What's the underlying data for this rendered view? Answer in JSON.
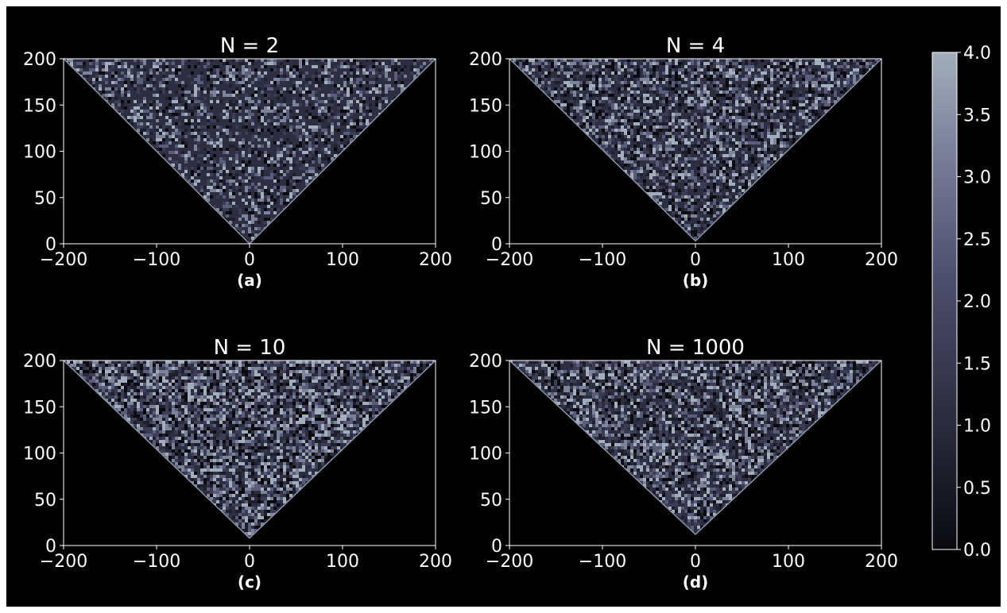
{
  "chart_data": [
    {
      "type": "heatmap",
      "title": "N = 2",
      "caption": "(a)",
      "xlim": [
        -200,
        200
      ],
      "ylim": [
        0,
        200
      ],
      "xticks": [
        "−200",
        "−100",
        "0",
        "100",
        "200"
      ],
      "yticks": [
        "0",
        "50",
        "100",
        "150",
        "200"
      ],
      "xticks_values": [
        -200,
        -100,
        0,
        100,
        200
      ],
      "yticks_values": [
        0,
        50,
        100,
        150,
        200
      ],
      "apex_y": 0,
      "texture_density": 0.5,
      "seed": 2
    },
    {
      "type": "heatmap",
      "title": "N = 4",
      "caption": "(b)",
      "xlim": [
        -200,
        200
      ],
      "ylim": [
        0,
        200
      ],
      "xticks": [
        "−200",
        "−100",
        "0",
        "100",
        "200"
      ],
      "yticks": [
        "0",
        "50",
        "100",
        "150",
        "200"
      ],
      "xticks_values": [
        -200,
        -100,
        0,
        100,
        200
      ],
      "yticks_values": [
        0,
        50,
        100,
        150,
        200
      ],
      "apex_y": 3,
      "texture_density": 0.7,
      "seed": 4
    },
    {
      "type": "heatmap",
      "title": "N = 10",
      "caption": "(c)",
      "xlim": [
        -200,
        200
      ],
      "ylim": [
        0,
        200
      ],
      "xticks": [
        "−200",
        "−100",
        "0",
        "100",
        "200"
      ],
      "yticks": [
        "0",
        "50",
        "100",
        "150",
        "200"
      ],
      "xticks_values": [
        -200,
        -100,
        0,
        100,
        200
      ],
      "yticks_values": [
        0,
        50,
        100,
        150,
        200
      ],
      "apex_y": 8,
      "texture_density": 0.8,
      "seed": 10
    },
    {
      "type": "heatmap",
      "title": "N = 1000",
      "caption": "(d)",
      "xlim": [
        -200,
        200
      ],
      "ylim": [
        0,
        200
      ],
      "xticks": [
        "−200",
        "−100",
        "0",
        "100",
        "200"
      ],
      "yticks": [
        "0",
        "50",
        "100",
        "150",
        "200"
      ],
      "xticks_values": [
        -200,
        -100,
        0,
        100,
        200
      ],
      "yticks_values": [
        0,
        50,
        100,
        150,
        200
      ],
      "apex_y": 12,
      "texture_density": 0.75,
      "seed": 1000
    }
  ],
  "colorbar": {
    "range": [
      0.0,
      4.0
    ],
    "ticks": [
      "0.0",
      "0.5",
      "1.0",
      "1.5",
      "2.0",
      "2.5",
      "3.0",
      "3.5",
      "4.0"
    ],
    "ticks_values": [
      0,
      0.5,
      1,
      1.5,
      2,
      2.5,
      3,
      3.5,
      4
    ],
    "colors": [
      "#0a0a0f",
      "#2a2a3c",
      "#4e4e6e",
      "#7a7f9a",
      "#a2aebb"
    ]
  },
  "colors": {
    "background": "#000000",
    "axis": "#ffffff",
    "low": "#0a0a0f",
    "mid": "#4e4e6e",
    "high": "#a2aebb"
  }
}
